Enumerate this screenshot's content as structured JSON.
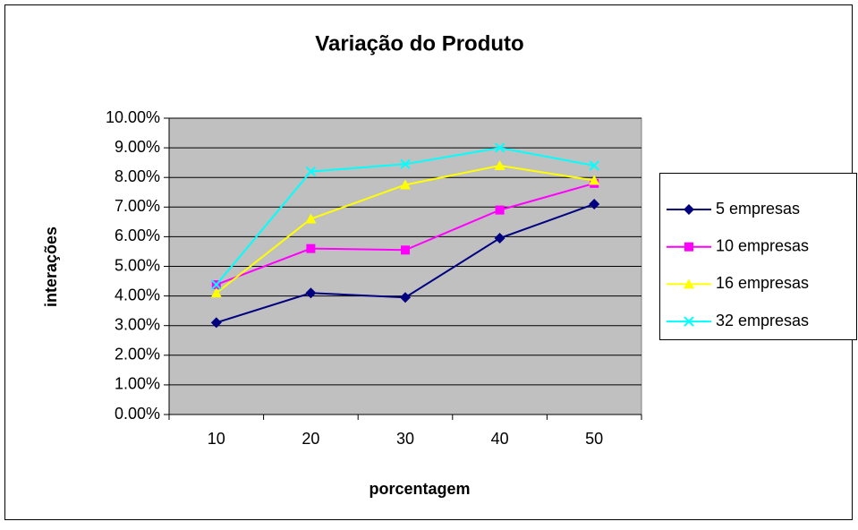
{
  "chart_data": {
    "type": "line",
    "title": "Variação do Produto",
    "x_label": "porcentagem",
    "y_label": "interações",
    "categories": [
      "10",
      "20",
      "30",
      "40",
      "50"
    ],
    "series": [
      {
        "name": "5 empresas",
        "color": "#000080",
        "marker": "diamond",
        "values": [
          3.1,
          4.1,
          3.95,
          5.95,
          7.1
        ]
      },
      {
        "name": "10 empresas",
        "color": "#FF00FF",
        "marker": "square",
        "values": [
          4.38,
          5.6,
          5.55,
          6.9,
          7.8
        ]
      },
      {
        "name": "16 empresas",
        "color": "#FFFF00",
        "marker": "triangle",
        "values": [
          4.1,
          6.6,
          7.75,
          8.4,
          7.9
        ]
      },
      {
        "name": "32 empresas",
        "color": "#00FFFF",
        "marker": "x",
        "values": [
          4.38,
          8.2,
          8.45,
          9.0,
          8.4
        ]
      }
    ],
    "ylim": [
      0,
      10
    ],
    "yticks": [
      {
        "value": 0,
        "label": "0.00%"
      },
      {
        "value": 1,
        "label": "1.00%"
      },
      {
        "value": 2,
        "label": "2.00%"
      },
      {
        "value": 3,
        "label": "3.00%"
      },
      {
        "value": 4,
        "label": "4.00%"
      },
      {
        "value": 5,
        "label": "5.00%"
      },
      {
        "value": 6,
        "label": "6.00%"
      },
      {
        "value": 7,
        "label": "7.00%"
      },
      {
        "value": 8,
        "label": "8.00%"
      },
      {
        "value": 9,
        "label": "9.00%"
      },
      {
        "value": 10,
        "label": "10.00%"
      }
    ],
    "grid": true,
    "legend": "right"
  }
}
